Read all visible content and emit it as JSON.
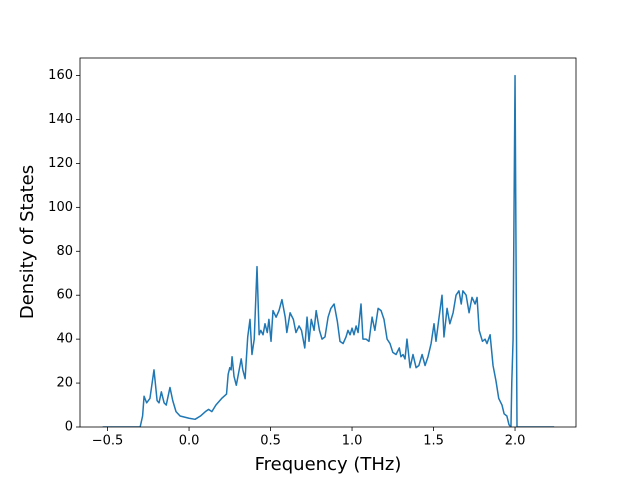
{
  "chart_data": {
    "type": "line",
    "x_label": "Frequency (THz)",
    "y_label": "Density of States",
    "color": "#1f77b4",
    "xlim": [
      -0.669,
      2.374
    ],
    "ylim": [
      0,
      168
    ],
    "xticks": [
      {
        "value": -0.5,
        "label": "−0.5"
      },
      {
        "value": 0,
        "label": "0.0"
      },
      0.5,
      {
        "value": 1,
        "label": "1.0"
      },
      1.5,
      {
        "value": 2,
        "label": "2.0"
      }
    ],
    "yticks": [
      0,
      20,
      40,
      60,
      80,
      100,
      120,
      140,
      160
    ],
    "x": [
      -0.53,
      -0.3,
      -0.285,
      -0.276,
      -0.26,
      -0.24,
      -0.215,
      -0.196,
      -0.184,
      -0.17,
      -0.153,
      -0.14,
      -0.117,
      -0.1,
      -0.08,
      -0.055,
      0,
      0.037,
      0.07,
      0.1,
      0.12,
      0.14,
      0.165,
      0.2,
      0.23,
      0.24,
      0.25,
      0.258,
      0.264,
      0.276,
      0.29,
      0.31,
      0.32,
      0.33,
      0.344,
      0.36,
      0.374,
      0.386,
      0.4,
      0.417,
      0.43,
      0.44,
      0.454,
      0.466,
      0.48,
      0.49,
      0.503,
      0.515,
      0.534,
      0.552,
      0.57,
      0.59,
      0.6,
      0.62,
      0.64,
      0.656,
      0.675,
      0.69,
      0.71,
      0.724,
      0.736,
      0.75,
      0.767,
      0.78,
      0.8,
      0.816,
      0.834,
      0.853,
      0.87,
      0.89,
      0.91,
      0.926,
      0.945,
      0.963,
      0.975,
      0.988,
      1.0,
      1.012,
      1.025,
      1.037,
      1.055,
      1.067,
      1.086,
      1.104,
      1.123,
      1.14,
      1.16,
      1.178,
      1.196,
      1.215,
      1.233,
      1.25,
      1.27,
      1.29,
      1.3,
      1.313,
      1.325,
      1.337,
      1.356,
      1.374,
      1.393,
      1.41,
      1.43,
      1.448,
      1.466,
      1.485,
      1.503,
      1.515,
      1.534,
      1.552,
      1.564,
      1.583,
      1.6,
      1.62,
      1.638,
      1.656,
      1.67,
      1.68,
      1.7,
      1.718,
      1.736,
      1.755,
      1.767,
      1.78,
      1.8,
      1.816,
      1.828,
      1.847,
      1.865,
      1.883,
      1.9,
      1.92,
      1.933,
      1.95,
      1.963,
      1.975,
      1.98,
      1.988,
      2.0,
      2.012,
      2.24
    ],
    "values": [
      0,
      0,
      5,
      14,
      11,
      13,
      26,
      12,
      11,
      16,
      11,
      10,
      18,
      12,
      7,
      5,
      4,
      3.5,
      5,
      7,
      8,
      7,
      10,
      13,
      15,
      24,
      27,
      26,
      32,
      23,
      19,
      27,
      31,
      26,
      22,
      41,
      49,
      33,
      40,
      73,
      42,
      44,
      42,
      47,
      43,
      49,
      39,
      53,
      50,
      53,
      58,
      50,
      43,
      52,
      49,
      43,
      46,
      44,
      36,
      50,
      39,
      49,
      44,
      53,
      44,
      40,
      41,
      50,
      54,
      56,
      48,
      39,
      38,
      41,
      44,
      42,
      45,
      42,
      46,
      43,
      56,
      40,
      40,
      39,
      50,
      44,
      54,
      53,
      49,
      40,
      38,
      34,
      33,
      36,
      32,
      33,
      31,
      40,
      27,
      33,
      27,
      28,
      33,
      28,
      32,
      38,
      47,
      39,
      50,
      60,
      41,
      54,
      47,
      52,
      60,
      62,
      56,
      62,
      60,
      52,
      59,
      56,
      59,
      44,
      39,
      40,
      38,
      42,
      28,
      21,
      13,
      10,
      6,
      5,
      1,
      0,
      20,
      40,
      160,
      0,
      0
    ]
  }
}
